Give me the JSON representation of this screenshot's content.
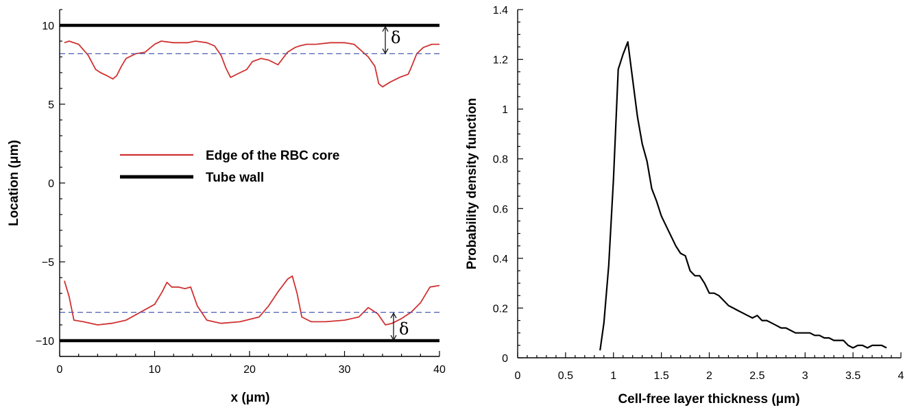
{
  "chart_data": [
    {
      "type": "line",
      "xlabel": "x (μm)",
      "ylabel": "Location (μm)",
      "xlim": [
        0,
        40
      ],
      "ylim": [
        -11,
        11
      ],
      "xticks": [
        0,
        10,
        20,
        30,
        40
      ],
      "xtick_labels": [
        "0",
        "10",
        "20",
        "30",
        "40"
      ],
      "yticks": [
        -10,
        -5,
        0,
        5,
        10
      ],
      "ytick_labels": [
        "−10",
        "−5",
        "0",
        "5",
        "10"
      ],
      "legend": {
        "placement": "center",
        "entries": [
          "Edge of the RBC core",
          "Tube wall"
        ]
      },
      "annotations": [
        "δ",
        "δ"
      ],
      "series": [
        {
          "name": "Tube wall",
          "color": "#000000",
          "segments": [
            {
              "x": [
                0,
                40
              ],
              "y": [
                10,
                10
              ]
            },
            {
              "x": [
                0,
                40
              ],
              "y": [
                -10,
                -10
              ]
            }
          ]
        },
        {
          "name": "Edge of the RBC core",
          "color": "#d03030",
          "segments": [
            {
              "x": [
                0.5,
                1,
                2,
                3,
                3.8,
                4.3,
                5,
                5.6,
                6,
                6.5,
                7,
                8,
                9,
                10,
                10.7,
                12,
                13.5,
                14.3,
                15.5,
                16.3,
                17,
                17.5,
                18,
                19,
                19.7,
                20.3,
                21.2,
                22,
                23,
                24,
                24.8,
                25.3,
                26,
                27,
                28.5,
                30,
                31,
                32.5,
                33.2,
                33.6,
                34,
                34.8,
                35.8,
                36.7,
                37,
                37.6,
                38.3,
                39.2,
                40
              ],
              "y": [
                8.9,
                9.0,
                8.8,
                8.1,
                7.2,
                7.0,
                6.8,
                6.6,
                6.8,
                7.4,
                7.9,
                8.2,
                8.3,
                8.8,
                9.0,
                8.9,
                8.9,
                9.0,
                8.9,
                8.7,
                8.1,
                7.3,
                6.7,
                7.0,
                7.2,
                7.7,
                7.9,
                7.8,
                7.5,
                8.3,
                8.6,
                8.7,
                8.8,
                8.8,
                8.9,
                8.9,
                8.8,
                8.0,
                7.4,
                6.3,
                6.1,
                6.4,
                6.7,
                6.9,
                7.3,
                8.2,
                8.6,
                8.8,
                8.8
              ]
            },
            {
              "x": [
                0.5,
                1,
                1.5,
                2.5,
                4,
                5.5,
                7,
                8.5,
                10,
                10.8,
                11.3,
                11.8,
                12.5,
                13.2,
                13.8,
                14.5,
                15.5,
                17,
                19,
                21,
                22,
                23,
                24,
                24.5,
                25,
                25.5,
                26.5,
                28,
                30,
                31.5,
                32.5,
                33.5,
                34.3,
                35,
                36,
                37,
                38,
                39,
                40
              ],
              "y": [
                -6.2,
                -7.2,
                -8.7,
                -8.8,
                -9.0,
                -8.9,
                -8.7,
                -8.2,
                -7.7,
                -6.9,
                -6.3,
                -6.6,
                -6.6,
                -6.7,
                -6.6,
                -7.8,
                -8.7,
                -8.9,
                -8.8,
                -8.5,
                -7.8,
                -6.9,
                -6.1,
                -5.9,
                -7.0,
                -8.5,
                -8.8,
                -8.8,
                -8.7,
                -8.5,
                -7.9,
                -8.3,
                -9.0,
                -8.9,
                -8.6,
                -8.2,
                -7.6,
                -6.6,
                -6.5
              ]
            }
          ]
        },
        {
          "name": "",
          "color": "#4a5bb5",
          "segments": [
            {
              "x": [
                0,
                40
              ],
              "y": [
                8.2,
                8.2
              ]
            },
            {
              "x": [
                0,
                40
              ],
              "y": [
                -8.2,
                -8.2
              ]
            }
          ]
        }
      ]
    },
    {
      "type": "line",
      "xlabel": "Cell-free layer thickness (μm)",
      "ylabel": "Probability density function",
      "xlim": [
        0,
        4
      ],
      "ylim": [
        0,
        1.4
      ],
      "xticks": [
        0,
        0.5,
        1,
        1.5,
        2,
        2.5,
        3,
        3.5,
        4
      ],
      "xtick_labels": [
        "0",
        "0.5",
        "1",
        "1.5",
        "2",
        "2.5",
        "3",
        "3.5",
        "4"
      ],
      "yticks": [
        0,
        0.2,
        0.4,
        0.6,
        0.8,
        1,
        1.2,
        1.4
      ],
      "ytick_labels": [
        "0",
        "0.2",
        "0.4",
        "0.6",
        "0.8",
        "1",
        "1.2",
        "1.4"
      ],
      "series": [
        {
          "name": "",
          "color": "#000000",
          "x": [
            0.86,
            0.9,
            0.95,
            1.0,
            1.05,
            1.1,
            1.15,
            1.2,
            1.25,
            1.3,
            1.35,
            1.4,
            1.45,
            1.5,
            1.55,
            1.6,
            1.65,
            1.7,
            1.75,
            1.8,
            1.85,
            1.9,
            1.95,
            2.0,
            2.05,
            2.1,
            2.15,
            2.2,
            2.25,
            2.3,
            2.35,
            2.4,
            2.45,
            2.5,
            2.55,
            2.6,
            2.65,
            2.7,
            2.75,
            2.8,
            2.85,
            2.9,
            2.95,
            3.0,
            3.05,
            3.1,
            3.15,
            3.2,
            3.25,
            3.3,
            3.35,
            3.4,
            3.45,
            3.5,
            3.55,
            3.6,
            3.65,
            3.7,
            3.75,
            3.8,
            3.85
          ],
          "y": [
            0.03,
            0.14,
            0.37,
            0.72,
            1.16,
            1.22,
            1.27,
            1.12,
            0.97,
            0.86,
            0.79,
            0.68,
            0.63,
            0.57,
            0.53,
            0.49,
            0.45,
            0.42,
            0.41,
            0.35,
            0.33,
            0.33,
            0.3,
            0.26,
            0.26,
            0.25,
            0.23,
            0.21,
            0.2,
            0.19,
            0.18,
            0.17,
            0.16,
            0.17,
            0.15,
            0.15,
            0.14,
            0.13,
            0.12,
            0.12,
            0.11,
            0.1,
            0.1,
            0.1,
            0.1,
            0.09,
            0.09,
            0.08,
            0.08,
            0.07,
            0.07,
            0.07,
            0.05,
            0.04,
            0.05,
            0.05,
            0.04,
            0.05,
            0.05,
            0.05,
            0.04
          ]
        }
      ]
    }
  ]
}
